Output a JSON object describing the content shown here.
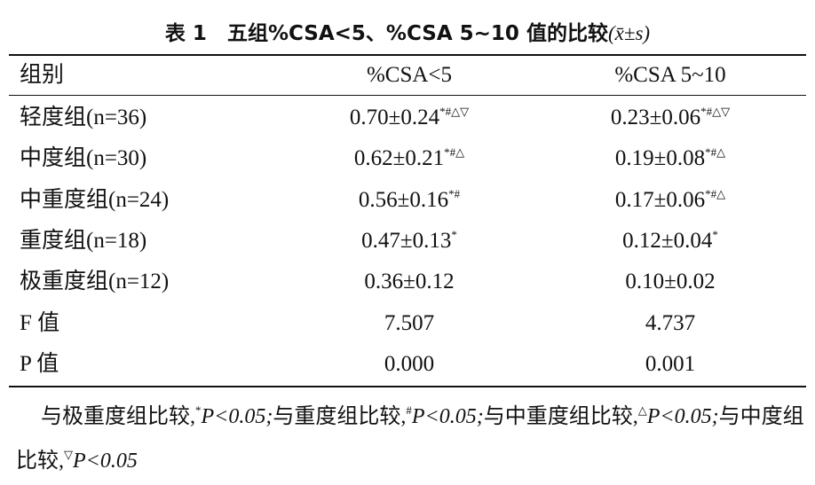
{
  "title": {
    "number": "表 1",
    "text": "五组%CSA<5、%CSA 5~10 值的比较",
    "stat": "(x̄±s)"
  },
  "table": {
    "header": [
      "组别",
      "%CSA<5",
      "%CSA 5~10"
    ],
    "rows": [
      {
        "label": "轻度组(n=36)",
        "cells": [
          {
            "value": "0.70±0.24",
            "marks": "*#△▽"
          },
          {
            "value": "0.23±0.06",
            "marks": "*#△▽"
          }
        ]
      },
      {
        "label": "中度组(n=30)",
        "cells": [
          {
            "value": "0.62±0.21",
            "marks": "*#△"
          },
          {
            "value": "0.19±0.08",
            "marks": "*#△"
          }
        ]
      },
      {
        "label": "中重度组(n=24)",
        "cells": [
          {
            "value": "0.56±0.16",
            "marks": "*#"
          },
          {
            "value": "0.17±0.06",
            "marks": "*#△"
          }
        ]
      },
      {
        "label": "重度组(n=18)",
        "cells": [
          {
            "value": "0.47±0.13",
            "marks": "*"
          },
          {
            "value": "0.12±0.04",
            "marks": "*"
          }
        ]
      },
      {
        "label": "极重度组(n=12)",
        "cells": [
          {
            "value": "0.36±0.12"
          },
          {
            "value": "0.10±0.02"
          }
        ]
      },
      {
        "label": "F 值",
        "cells": [
          {
            "value": "7.507"
          },
          {
            "value": "4.737"
          }
        ]
      },
      {
        "label": "P 值",
        "cells": [
          {
            "value": "0.000"
          },
          {
            "value": "0.001"
          }
        ]
      }
    ]
  },
  "footnote": [
    {
      "text": "与极重度组比较,",
      "mark": "*",
      "condition": "P<0.05;"
    },
    {
      "text": "与重度组比较,",
      "mark": "#",
      "condition": "P<0.05;"
    },
    {
      "text": "与中重度组比较,",
      "mark": "△",
      "condition": "P<0.05;"
    },
    {
      "text": "与中度组比较,",
      "mark": "▽",
      "condition": "P<0.05"
    }
  ]
}
